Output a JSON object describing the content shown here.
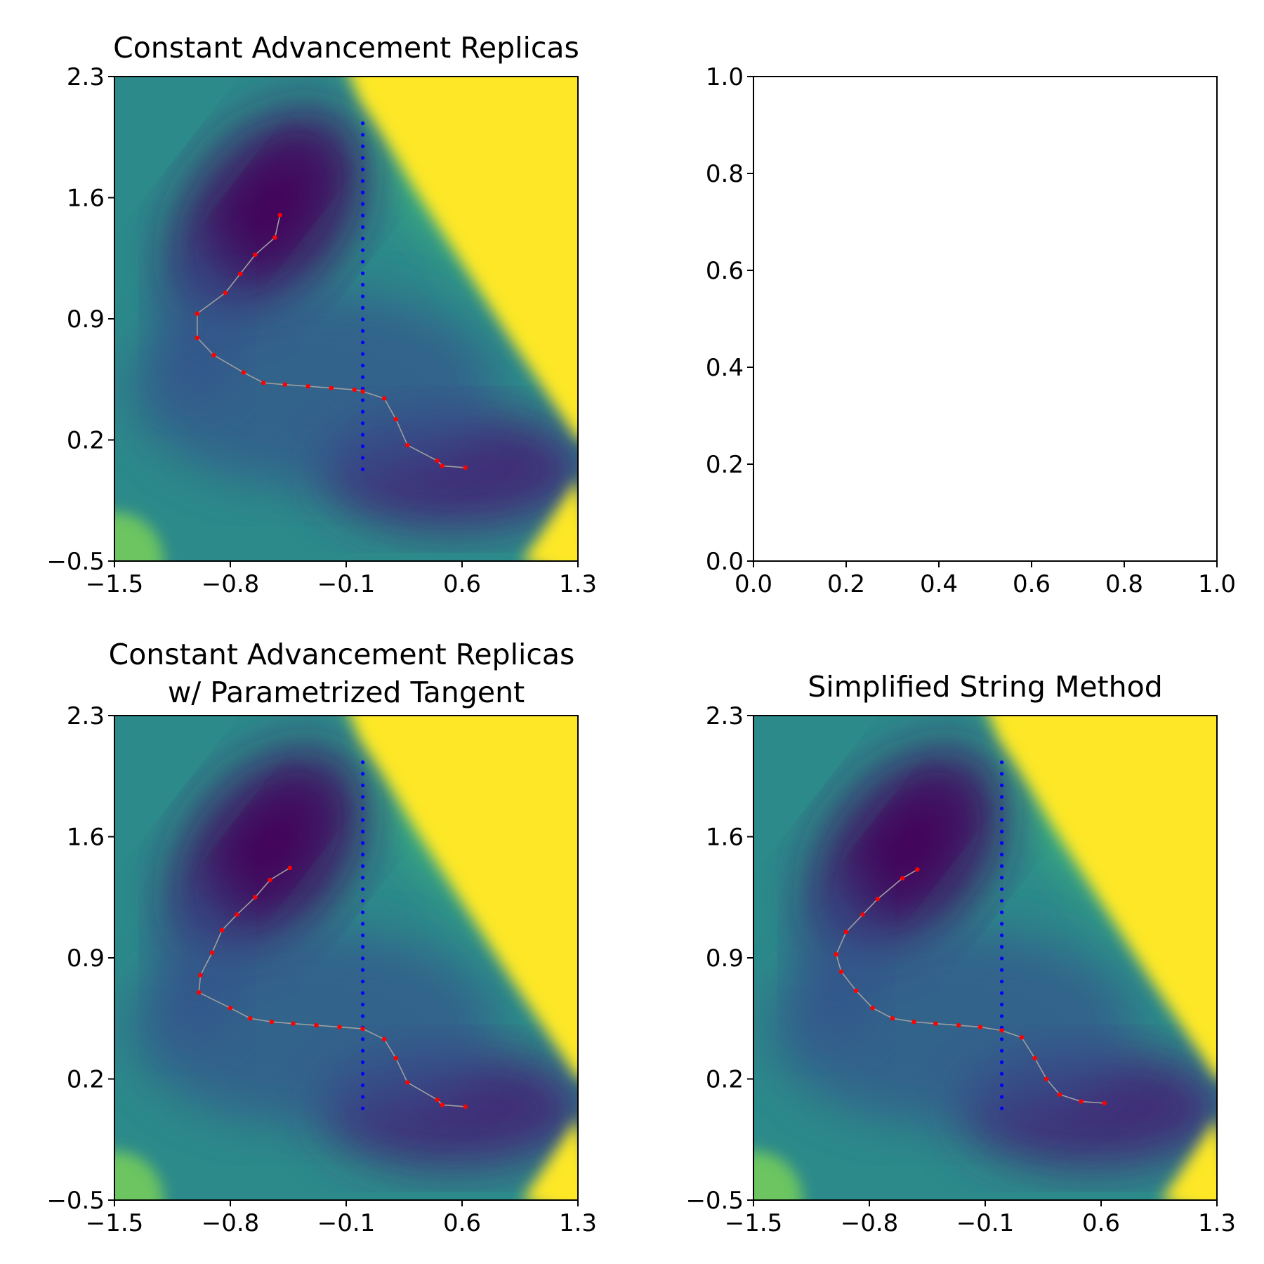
{
  "figure": {
    "colors": {
      "path_line": "#9e9e9e",
      "path_points": "#ff0000",
      "divider": "#0000ff",
      "colormap": "viridis"
    }
  },
  "chart_data": [
    {
      "type": "heatmap",
      "panel": "top-left",
      "title": "Constant Advancement Replicas",
      "xlabel": "",
      "ylabel": "",
      "xlim": [
        -1.5,
        1.3
      ],
      "ylim": [
        -0.5,
        2.3
      ],
      "xticks": [
        "−1.5",
        "−0.8",
        "−0.1",
        "0.6",
        "1.3"
      ],
      "yticks": [
        "−0.5",
        "0.2",
        "0.9",
        "1.6",
        "2.3"
      ],
      "xtick_values": [
        -1.5,
        -0.8,
        -0.1,
        0.6,
        1.3
      ],
      "ytick_values": [
        -0.5,
        0.2,
        0.9,
        1.6,
        2.3
      ],
      "divider": {
        "x": 0.0,
        "y_range": [
          0.03,
          2.03
        ]
      },
      "path": {
        "x": [
          -0.5,
          -0.53,
          -0.65,
          -0.74,
          -0.83,
          -1.0,
          -1.0,
          -0.9,
          -0.72,
          -0.6,
          -0.47,
          -0.33,
          -0.19,
          -0.05,
          0.0,
          0.13,
          0.2,
          0.27,
          0.45,
          0.48,
          0.62
        ],
        "y": [
          1.5,
          1.37,
          1.27,
          1.16,
          1.05,
          0.93,
          0.79,
          0.69,
          0.59,
          0.53,
          0.52,
          0.51,
          0.5,
          0.49,
          0.48,
          0.44,
          0.32,
          0.17,
          0.08,
          0.05,
          0.04
        ]
      }
    },
    {
      "type": "line",
      "panel": "top-right",
      "title": "",
      "xlabel": "",
      "ylabel": "",
      "xlim": [
        0.0,
        1.0
      ],
      "ylim": [
        0.0,
        1.0
      ],
      "xticks": [
        "0.0",
        "0.2",
        "0.4",
        "0.6",
        "0.8",
        "1.0"
      ],
      "yticks": [
        "0.0",
        "0.2",
        "0.4",
        "0.6",
        "0.8",
        "1.0"
      ],
      "xtick_values": [
        0.0,
        0.2,
        0.4,
        0.6,
        0.8,
        1.0
      ],
      "ytick_values": [
        0.0,
        0.2,
        0.4,
        0.6,
        0.8,
        1.0
      ],
      "series": []
    },
    {
      "type": "heatmap",
      "panel": "bottom-left",
      "title": "Constant Advancement Replicas\nw/ Parametrized Tangent",
      "xlabel": "",
      "ylabel": "",
      "xlim": [
        -1.5,
        1.3
      ],
      "ylim": [
        -0.5,
        2.3
      ],
      "xticks": [
        "−1.5",
        "−0.8",
        "−0.1",
        "0.6",
        "1.3"
      ],
      "yticks": [
        "−0.5",
        "0.2",
        "0.9",
        "1.6",
        "2.3"
      ],
      "xtick_values": [
        -1.5,
        -0.8,
        -0.1,
        0.6,
        1.3
      ],
      "ytick_values": [
        -0.5,
        0.2,
        0.9,
        1.6,
        2.3
      ],
      "divider": {
        "x": 0.0,
        "y_range": [
          0.03,
          2.03
        ]
      },
      "path": {
        "x": [
          -0.44,
          -0.56,
          -0.65,
          -0.76,
          -0.85,
          -0.91,
          -0.98,
          -0.99,
          -0.8,
          -0.68,
          -0.55,
          -0.42,
          -0.28,
          -0.14,
          0.0,
          0.13,
          0.2,
          0.27,
          0.45,
          0.48,
          0.62
        ],
        "y": [
          1.42,
          1.35,
          1.25,
          1.15,
          1.06,
          0.93,
          0.8,
          0.7,
          0.61,
          0.55,
          0.53,
          0.52,
          0.51,
          0.5,
          0.49,
          0.43,
          0.32,
          0.18,
          0.08,
          0.05,
          0.04
        ]
      }
    },
    {
      "type": "heatmap",
      "panel": "bottom-right",
      "title": "Simplified String Method",
      "xlabel": "",
      "ylabel": "",
      "xlim": [
        -1.5,
        1.3
      ],
      "ylim": [
        -0.5,
        2.3
      ],
      "xticks": [
        "−1.5",
        "−0.8",
        "−0.1",
        "0.6",
        "1.3"
      ],
      "yticks": [
        "−0.5",
        "0.2",
        "0.9",
        "1.6",
        "2.3"
      ],
      "xtick_values": [
        -1.5,
        -0.8,
        -0.1,
        0.6,
        1.3
      ],
      "ytick_values": [
        -0.5,
        0.2,
        0.9,
        1.6,
        2.3
      ],
      "divider": {
        "x": 0.0,
        "y_range": [
          0.03,
          2.03
        ]
      },
      "path": {
        "x": [
          -0.51,
          -0.6,
          -0.75,
          -0.84,
          -0.94,
          -1.0,
          -0.97,
          -0.88,
          -0.78,
          -0.66,
          -0.53,
          -0.4,
          -0.26,
          -0.13,
          0.0,
          0.12,
          0.2,
          0.27,
          0.35,
          0.48,
          0.62
        ],
        "y": [
          1.41,
          1.36,
          1.24,
          1.15,
          1.05,
          0.92,
          0.82,
          0.71,
          0.61,
          0.55,
          0.53,
          0.52,
          0.51,
          0.5,
          0.48,
          0.44,
          0.32,
          0.2,
          0.11,
          0.07,
          0.06
        ]
      }
    }
  ]
}
